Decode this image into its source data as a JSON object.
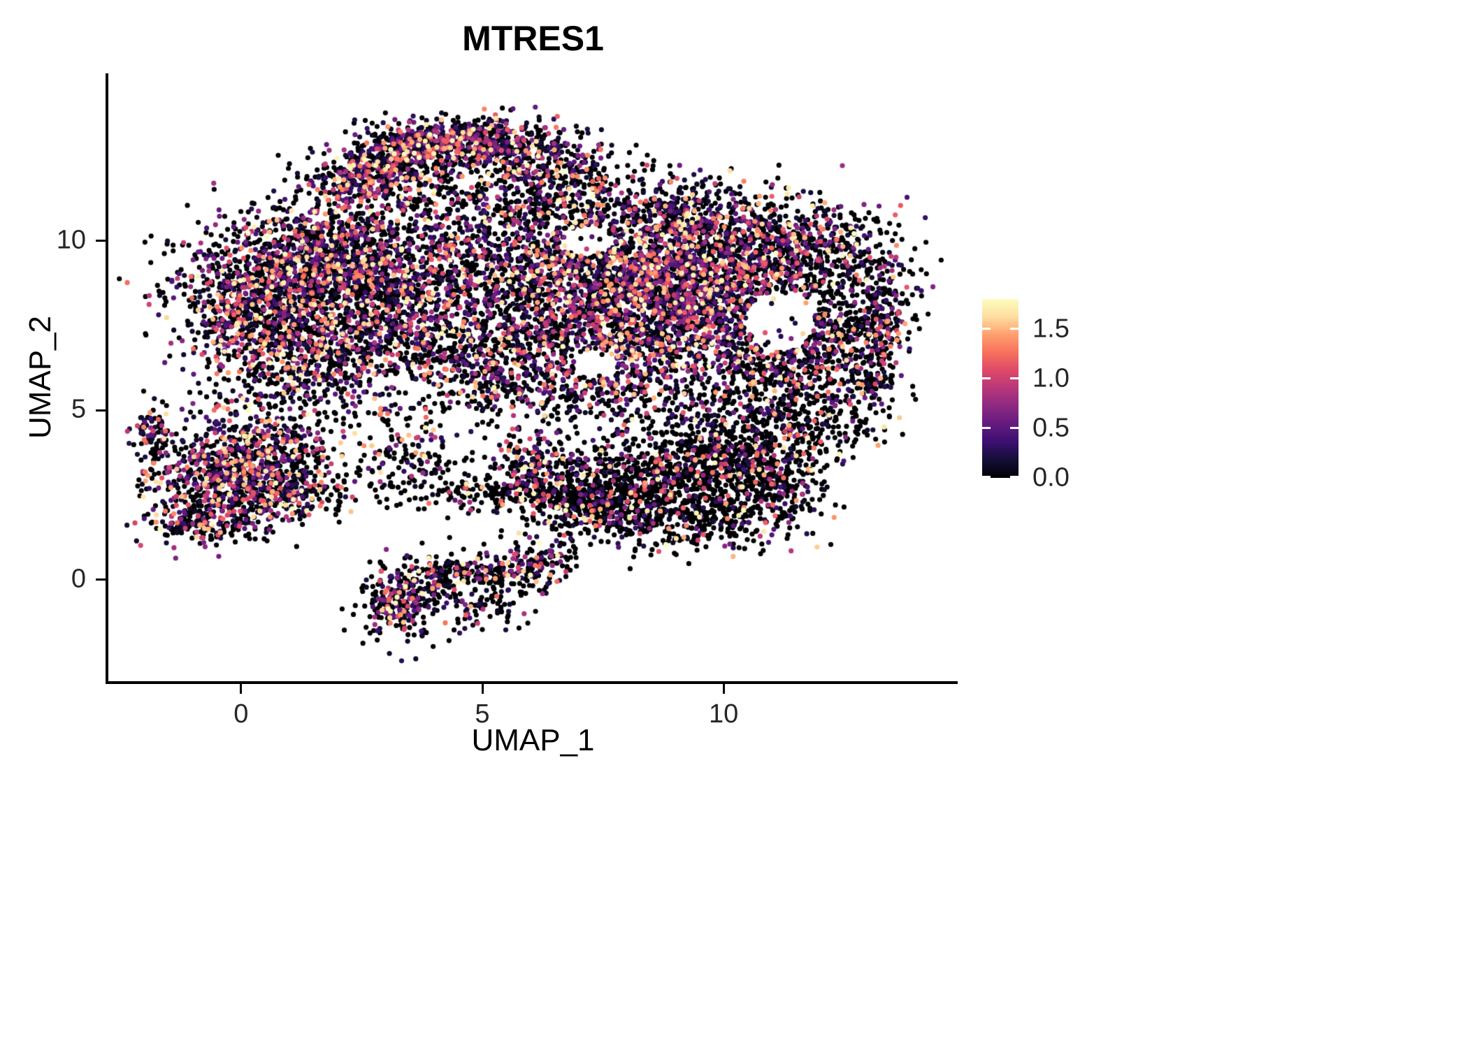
{
  "title": "MTRES1",
  "chart_data": {
    "type": "scatter",
    "title": "MTRES1",
    "xlabel": "UMAP_1",
    "ylabel": "UMAP_2",
    "xlim": [
      -2.75,
      14.85
    ],
    "ylim": [
      -3.0,
      14.95
    ],
    "xticks": [
      0,
      5,
      10
    ],
    "yticks": [
      0,
      5,
      10
    ],
    "grid": false,
    "background": "#ffffff",
    "point_radius": 3.6,
    "colorbar": {
      "position": "right",
      "vmin": 0.0,
      "vmax": 1.8,
      "tick_labels": [
        "1.5",
        "1.0",
        "0.5",
        "0.0"
      ],
      "tick_values": [
        1.5,
        1.0,
        0.5,
        0.0
      ]
    },
    "colormap": {
      "name": "magma",
      "stops": [
        {
          "t": 0.0,
          "color": "#000004"
        },
        {
          "t": 0.1,
          "color": "#140e36"
        },
        {
          "t": 0.2,
          "color": "#3b0f70"
        },
        {
          "t": 0.3,
          "color": "#641a80"
        },
        {
          "t": 0.4,
          "color": "#8c2981"
        },
        {
          "t": 0.5,
          "color": "#b73779"
        },
        {
          "t": 0.6,
          "color": "#de4968"
        },
        {
          "t": 0.7,
          "color": "#f7705c"
        },
        {
          "t": 0.8,
          "color": "#fe9f6d"
        },
        {
          "t": 0.9,
          "color": "#fddea0"
        },
        {
          "t": 1.0,
          "color": "#fcfdbf"
        }
      ]
    },
    "seed": 1234,
    "value_model": {
      "nonzero_min": 0.12,
      "nonzero_max": 1.8,
      "bias": 2.1
    },
    "cluster_fields": [
      "cx",
      "cy",
      "sx",
      "sy",
      "n",
      "p_zero"
    ],
    "clusters": [
      [
        2.5,
        11.9,
        0.55,
        0.45,
        350,
        0.45
      ],
      [
        3.6,
        12.7,
        0.6,
        0.4,
        400,
        0.4
      ],
      [
        4.8,
        13.0,
        0.6,
        0.35,
        350,
        0.45
      ],
      [
        6.0,
        12.5,
        0.6,
        0.45,
        250,
        0.5
      ],
      [
        4.8,
        11.6,
        1.4,
        0.45,
        150,
        0.65
      ],
      [
        7.0,
        12.0,
        0.6,
        0.5,
        120,
        0.55
      ],
      [
        6.8,
        10.9,
        1.8,
        0.55,
        400,
        0.6
      ],
      [
        9.3,
        10.8,
        1.0,
        0.55,
        300,
        0.5
      ],
      [
        0.9,
        8.5,
        1.1,
        1.1,
        1100,
        0.5
      ],
      [
        2.4,
        9.4,
        1.1,
        0.85,
        700,
        0.5
      ],
      [
        1.6,
        6.6,
        1.0,
        0.8,
        500,
        0.5
      ],
      [
        -0.2,
        7.9,
        0.45,
        0.9,
        220,
        0.5
      ],
      [
        3.2,
        7.8,
        0.8,
        0.9,
        400,
        0.55
      ],
      [
        5.2,
        9.3,
        1.1,
        0.9,
        550,
        0.55
      ],
      [
        5.0,
        7.0,
        1.1,
        0.9,
        450,
        0.6
      ],
      [
        6.3,
        6.0,
        1.2,
        0.6,
        350,
        0.5
      ],
      [
        6.7,
        8.3,
        0.8,
        0.9,
        350,
        0.6
      ],
      [
        8.3,
        9.3,
        1.1,
        0.8,
        900,
        0.45
      ],
      [
        9.6,
        8.0,
        1.1,
        0.9,
        800,
        0.45
      ],
      [
        8.1,
        7.0,
        0.9,
        0.8,
        500,
        0.5
      ],
      [
        10.4,
        9.6,
        0.9,
        0.7,
        450,
        0.5
      ],
      [
        10.8,
        6.8,
        0.8,
        0.7,
        300,
        0.55
      ],
      [
        11.8,
        9.9,
        0.9,
        0.65,
        350,
        0.6
      ],
      [
        12.6,
        8.2,
        0.7,
        1.1,
        300,
        0.7
      ],
      [
        11.5,
        6.2,
        1.0,
        0.55,
        220,
        0.7
      ],
      [
        13.25,
        7.3,
        0.3,
        1.0,
        180,
        0.6
      ],
      [
        12.2,
        6.9,
        0.7,
        0.7,
        100,
        0.75
      ],
      [
        8.6,
        5.1,
        1.6,
        0.45,
        220,
        0.65
      ],
      [
        11.0,
        4.9,
        0.8,
        0.5,
        150,
        0.7
      ],
      [
        8.8,
        2.9,
        1.2,
        0.75,
        850,
        0.8
      ],
      [
        10.2,
        3.6,
        0.8,
        0.6,
        400,
        0.75
      ],
      [
        7.5,
        2.1,
        0.8,
        0.5,
        300,
        0.8
      ],
      [
        11.1,
        2.8,
        0.5,
        0.7,
        200,
        0.75
      ],
      [
        9.7,
        1.6,
        0.9,
        0.4,
        200,
        0.8
      ],
      [
        5.1,
        2.6,
        1.3,
        0.3,
        200,
        0.85
      ],
      [
        6.1,
        3.5,
        0.45,
        0.4,
        130,
        0.5
      ],
      [
        3.6,
        3.6,
        0.6,
        0.45,
        100,
        0.7
      ],
      [
        6.6,
        2.4,
        0.6,
        0.4,
        120,
        0.75
      ],
      [
        -0.3,
        2.9,
        0.85,
        0.75,
        650,
        0.45
      ],
      [
        0.4,
        3.9,
        0.75,
        0.5,
        280,
        0.5
      ],
      [
        -1.85,
        4.35,
        0.18,
        0.45,
        80,
        0.5
      ],
      [
        -0.7,
        1.7,
        0.6,
        0.3,
        150,
        0.5
      ],
      [
        0.9,
        2.5,
        0.5,
        0.45,
        160,
        0.55
      ],
      [
        1.8,
        3.0,
        0.5,
        0.5,
        60,
        0.7
      ],
      [
        3.3,
        -0.6,
        0.4,
        0.55,
        260,
        0.5
      ],
      [
        4.3,
        0.1,
        0.55,
        0.4,
        150,
        0.7
      ],
      [
        5.5,
        0.2,
        0.6,
        0.4,
        160,
        0.6
      ],
      [
        6.3,
        0.6,
        0.35,
        0.3,
        60,
        0.55
      ],
      [
        4.9,
        -0.8,
        0.5,
        0.3,
        60,
        0.7
      ],
      [
        1.7,
        10.7,
        0.7,
        0.5,
        80,
        0.6
      ],
      [
        0.2,
        5.3,
        0.8,
        0.4,
        60,
        0.6
      ],
      [
        3.0,
        4.9,
        1.0,
        0.5,
        80,
        0.7
      ],
      [
        12.3,
        4.5,
        0.6,
        0.5,
        90,
        0.7
      ],
      [
        12.9,
        5.6,
        0.5,
        0.4,
        70,
        0.65
      ]
    ],
    "hole_fields": [
      "cx",
      "cy",
      "rx",
      "ry"
    ],
    "holes": [
      [
        11.15,
        7.6,
        0.75,
        0.85
      ],
      [
        7.2,
        10.0,
        0.5,
        0.45
      ],
      [
        7.35,
        6.35,
        0.45,
        0.45
      ]
    ]
  }
}
